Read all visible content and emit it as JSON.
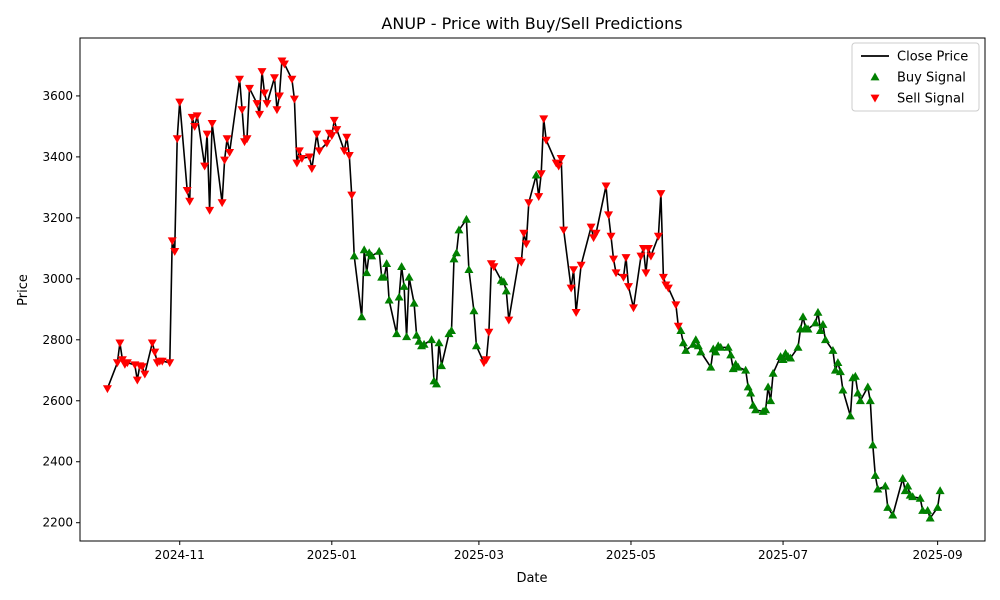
{
  "chart_data": {
    "type": "line",
    "title": "ANUP - Price with Buy/Sell Predictions",
    "xlabel": "Date",
    "ylabel": "Price",
    "x_range": [
      "2024-09-22",
      "2025-09-20"
    ],
    "ylim": [
      2140,
      3790
    ],
    "grid": false,
    "legend_position": "top-right",
    "x_ticks": [
      {
        "date": "2024-11-01",
        "label": "2024-11"
      },
      {
        "date": "2025-01-01",
        "label": "2025-01"
      },
      {
        "date": "2025-03-01",
        "label": "2025-03"
      },
      {
        "date": "2025-05-01",
        "label": "2025-05"
      },
      {
        "date": "2025-07-01",
        "label": "2025-07"
      },
      {
        "date": "2025-09-01",
        "label": "2025-09"
      }
    ],
    "y_ticks": [
      2200,
      2400,
      2600,
      2800,
      3000,
      3200,
      3400,
      3600
    ],
    "series": [
      {
        "name": "Close Price",
        "kind": "line",
        "color": "#000000"
      },
      {
        "name": "Buy Signal",
        "kind": "marker",
        "marker": "triangle-up",
        "color": "#008000"
      },
      {
        "name": "Sell Signal",
        "kind": "marker",
        "marker": "triangle-down",
        "color": "#ff0000"
      }
    ],
    "points": [
      [
        "2024-10-03",
        2640,
        "S"
      ],
      [
        "2024-10-07",
        2725,
        "S"
      ],
      [
        "2024-10-08",
        2790,
        "S"
      ],
      [
        "2024-10-09",
        2735,
        "S"
      ],
      [
        "2024-10-10",
        2720,
        "S"
      ],
      [
        "2024-10-11",
        2725,
        "S"
      ],
      [
        "2024-10-14",
        2718,
        "S"
      ],
      [
        "2024-10-15",
        2668,
        "S"
      ],
      [
        "2024-10-16",
        2715,
        "S"
      ],
      [
        "2024-10-17",
        2712,
        "S"
      ],
      [
        "2024-10-18",
        2688,
        "S"
      ],
      [
        "2024-10-21",
        2790,
        "S"
      ],
      [
        "2024-10-22",
        2760,
        "S"
      ],
      [
        "2024-10-23",
        2725,
        "S"
      ],
      [
        "2024-10-24",
        2730,
        "S"
      ],
      [
        "2024-10-25",
        2730,
        "S"
      ],
      [
        "2024-10-28",
        2725,
        "S"
      ],
      [
        "2024-10-29",
        3125,
        "S"
      ],
      [
        "2024-10-30",
        3090,
        "S"
      ],
      [
        "2024-10-31",
        3460,
        "S"
      ],
      [
        "2024-11-01",
        3580,
        "S"
      ],
      [
        "2024-11-04",
        3290,
        "S"
      ],
      [
        "2024-11-05",
        3255,
        "S"
      ],
      [
        "2024-11-06",
        3530,
        "S"
      ],
      [
        "2024-11-07",
        3500,
        "S"
      ],
      [
        "2024-11-08",
        3535,
        "S"
      ],
      [
        "2024-11-11",
        3370,
        "S"
      ],
      [
        "2024-11-12",
        3475,
        "S"
      ],
      [
        "2024-11-13",
        3225,
        "S"
      ],
      [
        "2024-11-14",
        3510,
        "S"
      ],
      [
        "2024-11-18",
        3250,
        "S"
      ],
      [
        "2024-11-19",
        3390,
        "S"
      ],
      [
        "2024-11-20",
        3460,
        "S"
      ],
      [
        "2024-11-21",
        3415,
        "S"
      ],
      [
        "2024-11-25",
        3655,
        "S"
      ],
      [
        "2024-11-26",
        3555,
        "S"
      ],
      [
        "2024-11-27",
        3450,
        "S"
      ],
      [
        "2024-11-28",
        3460,
        "S"
      ],
      [
        "2024-11-29",
        3625,
        "S"
      ],
      [
        "2024-12-02",
        3575,
        "S"
      ],
      [
        "2024-12-03",
        3540,
        "S"
      ],
      [
        "2024-12-04",
        3680,
        "S"
      ],
      [
        "2024-12-05",
        3610,
        "S"
      ],
      [
        "2024-12-06",
        3575,
        "S"
      ],
      [
        "2024-12-09",
        3660,
        "S"
      ],
      [
        "2024-12-10",
        3555,
        "S"
      ],
      [
        "2024-12-11",
        3600,
        "S"
      ],
      [
        "2024-12-12",
        3715,
        "S"
      ],
      [
        "2024-12-13",
        3705,
        "S"
      ],
      [
        "2024-12-16",
        3655,
        "S"
      ],
      [
        "2024-12-17",
        3590,
        "S"
      ],
      [
        "2024-12-18",
        3380,
        "S"
      ],
      [
        "2024-12-19",
        3420,
        "S"
      ],
      [
        "2024-12-20",
        3395,
        "S"
      ],
      [
        "2024-12-23",
        3400,
        "S"
      ],
      [
        "2024-12-24",
        3362,
        "S"
      ],
      [
        "2024-12-26",
        3475,
        "S"
      ],
      [
        "2024-12-27",
        3420,
        "S"
      ],
      [
        "2024-12-30",
        3445,
        "S"
      ],
      [
        "2024-12-31",
        3478,
        "S"
      ],
      [
        "2025-01-01",
        3470,
        "S"
      ],
      [
        "2025-01-02",
        3520,
        "S"
      ],
      [
        "2025-01-03",
        3490,
        "S"
      ],
      [
        "2025-01-06",
        3420,
        "S"
      ],
      [
        "2025-01-07",
        3465,
        "S"
      ],
      [
        "2025-01-08",
        3405,
        "S"
      ],
      [
        "2025-01-09",
        3275,
        "S"
      ],
      [
        "2025-01-10",
        3075,
        "B"
      ],
      [
        "2025-01-13",
        2875,
        "B"
      ],
      [
        "2025-01-14",
        3095,
        "B"
      ],
      [
        "2025-01-15",
        3020,
        "B"
      ],
      [
        "2025-01-16",
        3085,
        "B"
      ],
      [
        "2025-01-17",
        3075,
        "B"
      ],
      [
        "2025-01-20",
        3090,
        "B"
      ],
      [
        "2025-01-21",
        3005,
        "B"
      ],
      [
        "2025-01-22",
        3005,
        "B"
      ],
      [
        "2025-01-23",
        3050,
        "B"
      ],
      [
        "2025-01-24",
        2930,
        "B"
      ],
      [
        "2025-01-27",
        2820,
        "B"
      ],
      [
        "2025-01-28",
        2940,
        "B"
      ],
      [
        "2025-01-29",
        3040,
        "B"
      ],
      [
        "2025-01-30",
        2975,
        "B"
      ],
      [
        "2025-01-31",
        2810,
        "B"
      ],
      [
        "2025-02-01",
        3005,
        "B"
      ],
      [
        "2025-02-03",
        2920,
        "B"
      ],
      [
        "2025-02-04",
        2815,
        "B"
      ],
      [
        "2025-02-05",
        2795,
        "B"
      ],
      [
        "2025-02-06",
        2780,
        "B"
      ],
      [
        "2025-02-07",
        2785,
        "B"
      ],
      [
        "2025-02-10",
        2800,
        "B"
      ],
      [
        "2025-02-11",
        2665,
        "B"
      ],
      [
        "2025-02-12",
        2655,
        "B"
      ],
      [
        "2025-02-13",
        2790,
        "B"
      ],
      [
        "2025-02-14",
        2715,
        "B"
      ],
      [
        "2025-02-17",
        2820,
        "B"
      ],
      [
        "2025-02-18",
        2830,
        "B"
      ],
      [
        "2025-02-19",
        3065,
        "B"
      ],
      [
        "2025-02-20",
        3085,
        "B"
      ],
      [
        "2025-02-21",
        3160,
        "B"
      ],
      [
        "2025-02-24",
        3195,
        "B"
      ],
      [
        "2025-02-25",
        3030,
        "B"
      ],
      [
        "2025-02-27",
        2895,
        "B"
      ],
      [
        "2025-02-28",
        2780,
        "B"
      ],
      [
        "2025-03-03",
        2725,
        "S"
      ],
      [
        "2025-03-04",
        2735,
        "S"
      ],
      [
        "2025-03-05",
        2825,
        "S"
      ],
      [
        "2025-03-06",
        3050,
        "S"
      ],
      [
        "2025-03-07",
        3040,
        "S"
      ],
      [
        "2025-03-10",
        2995,
        "B"
      ],
      [
        "2025-03-11",
        2990,
        "B"
      ],
      [
        "2025-03-12",
        2960,
        "B"
      ],
      [
        "2025-03-13",
        2865,
        "S"
      ],
      [
        "2025-03-17",
        3060,
        "S"
      ],
      [
        "2025-03-18",
        3055,
        "S"
      ],
      [
        "2025-03-19",
        3150,
        "S"
      ],
      [
        "2025-03-20",
        3115,
        "S"
      ],
      [
        "2025-03-21",
        3250,
        "S"
      ],
      [
        "2025-03-24",
        3340,
        "B"
      ],
      [
        "2025-03-25",
        3270,
        "S"
      ],
      [
        "2025-03-26",
        3345,
        "S"
      ],
      [
        "2025-03-27",
        3525,
        "S"
      ],
      [
        "2025-03-28",
        3455,
        "S"
      ],
      [
        "2025-04-01",
        3380,
        "S"
      ],
      [
        "2025-04-02",
        3370,
        "S"
      ],
      [
        "2025-04-03",
        3395,
        "S"
      ],
      [
        "2025-04-04",
        3160,
        "S"
      ],
      [
        "2025-04-07",
        2970,
        "S"
      ],
      [
        "2025-04-08",
        3030,
        "S"
      ],
      [
        "2025-04-09",
        2890,
        "S"
      ],
      [
        "2025-04-11",
        3045,
        "S"
      ],
      [
        "2025-04-15",
        3170,
        "S"
      ],
      [
        "2025-04-16",
        3135,
        "S"
      ],
      [
        "2025-04-17",
        3150,
        "S"
      ],
      [
        "2025-04-21",
        3305,
        "S"
      ],
      [
        "2025-04-22",
        3210,
        "S"
      ],
      [
        "2025-04-23",
        3140,
        "S"
      ],
      [
        "2025-04-24",
        3065,
        "S"
      ],
      [
        "2025-04-25",
        3020,
        "S"
      ],
      [
        "2025-04-28",
        3005,
        "S"
      ],
      [
        "2025-04-29",
        3070,
        "S"
      ],
      [
        "2025-04-30",
        2975,
        "S"
      ],
      [
        "2025-05-02",
        2905,
        "S"
      ],
      [
        "2025-05-05",
        3075,
        "S"
      ],
      [
        "2025-05-06",
        3100,
        "S"
      ],
      [
        "2025-05-07",
        3020,
        "S"
      ],
      [
        "2025-05-08",
        3100,
        "S"
      ],
      [
        "2025-05-09",
        3075,
        "S"
      ],
      [
        "2025-05-12",
        3140,
        "S"
      ],
      [
        "2025-05-13",
        3280,
        "S"
      ],
      [
        "2025-05-14",
        3005,
        "S"
      ],
      [
        "2025-05-15",
        2980,
        "S"
      ],
      [
        "2025-05-16",
        2970,
        "S"
      ],
      [
        "2025-05-19",
        2915,
        "S"
      ],
      [
        "2025-05-20",
        2845,
        "S"
      ],
      [
        "2025-05-21",
        2830,
        "B"
      ],
      [
        "2025-05-22",
        2790,
        "B"
      ],
      [
        "2025-05-23",
        2765,
        "B"
      ],
      [
        "2025-05-26",
        2785,
        "B"
      ],
      [
        "2025-05-27",
        2800,
        "B"
      ],
      [
        "2025-05-28",
        2780,
        "B"
      ],
      [
        "2025-05-29",
        2760,
        "B"
      ],
      [
        "2025-06-02",
        2710,
        "B"
      ],
      [
        "2025-06-03",
        2770,
        "B"
      ],
      [
        "2025-06-04",
        2760,
        "B"
      ],
      [
        "2025-06-05",
        2780,
        "B"
      ],
      [
        "2025-06-06",
        2775,
        "B"
      ],
      [
        "2025-06-09",
        2775,
        "B"
      ],
      [
        "2025-06-10",
        2750,
        "B"
      ],
      [
        "2025-06-11",
        2705,
        "B"
      ],
      [
        "2025-06-12",
        2720,
        "B"
      ],
      [
        "2025-06-13",
        2710,
        "B"
      ],
      [
        "2025-06-16",
        2700,
        "B"
      ],
      [
        "2025-06-17",
        2645,
        "B"
      ],
      [
        "2025-06-18",
        2625,
        "B"
      ],
      [
        "2025-06-19",
        2585,
        "B"
      ],
      [
        "2025-06-20",
        2570,
        "B"
      ],
      [
        "2025-06-23",
        2565,
        "B"
      ],
      [
        "2025-06-24",
        2570,
        "B"
      ],
      [
        "2025-06-25",
        2645,
        "B"
      ],
      [
        "2025-06-26",
        2600,
        "B"
      ],
      [
        "2025-06-27",
        2690,
        "B"
      ],
      [
        "2025-06-30",
        2745,
        "B"
      ],
      [
        "2025-07-01",
        2735,
        "B"
      ],
      [
        "2025-07-02",
        2755,
        "B"
      ],
      [
        "2025-07-03",
        2745,
        "B"
      ],
      [
        "2025-07-04",
        2740,
        "B"
      ],
      [
        "2025-07-07",
        2775,
        "B"
      ],
      [
        "2025-07-08",
        2835,
        "B"
      ],
      [
        "2025-07-09",
        2875,
        "B"
      ],
      [
        "2025-07-10",
        2840,
        "B"
      ],
      [
        "2025-07-11",
        2835,
        "B"
      ],
      [
        "2025-07-14",
        2855,
        "B"
      ],
      [
        "2025-07-15",
        2890,
        "B"
      ],
      [
        "2025-07-16",
        2830,
        "B"
      ],
      [
        "2025-07-17",
        2850,
        "B"
      ],
      [
        "2025-07-18",
        2800,
        "B"
      ],
      [
        "2025-07-21",
        2765,
        "B"
      ],
      [
        "2025-07-22",
        2700,
        "B"
      ],
      [
        "2025-07-23",
        2725,
        "B"
      ],
      [
        "2025-07-24",
        2695,
        "B"
      ],
      [
        "2025-07-25",
        2635,
        "B"
      ],
      [
        "2025-07-28",
        2550,
        "B"
      ],
      [
        "2025-07-29",
        2675,
        "B"
      ],
      [
        "2025-07-30",
        2680,
        "B"
      ],
      [
        "2025-07-31",
        2625,
        "B"
      ],
      [
        "2025-08-01",
        2600,
        "B"
      ],
      [
        "2025-08-04",
        2645,
        "B"
      ],
      [
        "2025-08-05",
        2600,
        "B"
      ],
      [
        "2025-08-06",
        2455,
        "B"
      ],
      [
        "2025-08-07",
        2355,
        "B"
      ],
      [
        "2025-08-08",
        2310,
        "B"
      ],
      [
        "2025-08-11",
        2320,
        "B"
      ],
      [
        "2025-08-12",
        2250,
        "B"
      ],
      [
        "2025-08-14",
        2225,
        "B"
      ],
      [
        "2025-08-18",
        2345,
        "B"
      ],
      [
        "2025-08-19",
        2305,
        "B"
      ],
      [
        "2025-08-20",
        2320,
        "B"
      ],
      [
        "2025-08-21",
        2290,
        "B"
      ],
      [
        "2025-08-22",
        2285,
        "B"
      ],
      [
        "2025-08-25",
        2280,
        "B"
      ],
      [
        "2025-08-26",
        2240,
        "B"
      ],
      [
        "2025-08-28",
        2240,
        "B"
      ],
      [
        "2025-08-29",
        2215,
        "B"
      ],
      [
        "2025-09-01",
        2250,
        "B"
      ],
      [
        "2025-09-02",
        2305,
        "B"
      ]
    ]
  }
}
